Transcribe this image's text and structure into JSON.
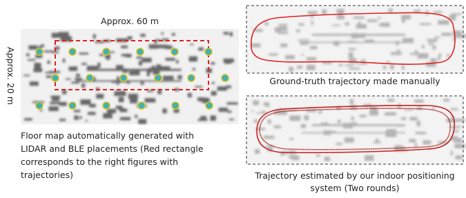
{
  "left_panel": {
    "width_label": "Approx. 60 m",
    "height_label": "Approx. 20 m",
    "caption_lines": [
      "Floor map automatically generated with",
      "LIDAR and BLE placements (Red rectangle",
      "corresponds to the right figures with",
      "trajectories)"
    ]
  },
  "top_right_panel": {
    "caption": "Ground-truth trajectory made manually"
  },
  "bottom_right_panel": {
    "caption_lines": [
      "Trajectory estimated by our indoor positioning",
      "system (Two rounds)"
    ]
  }
}
